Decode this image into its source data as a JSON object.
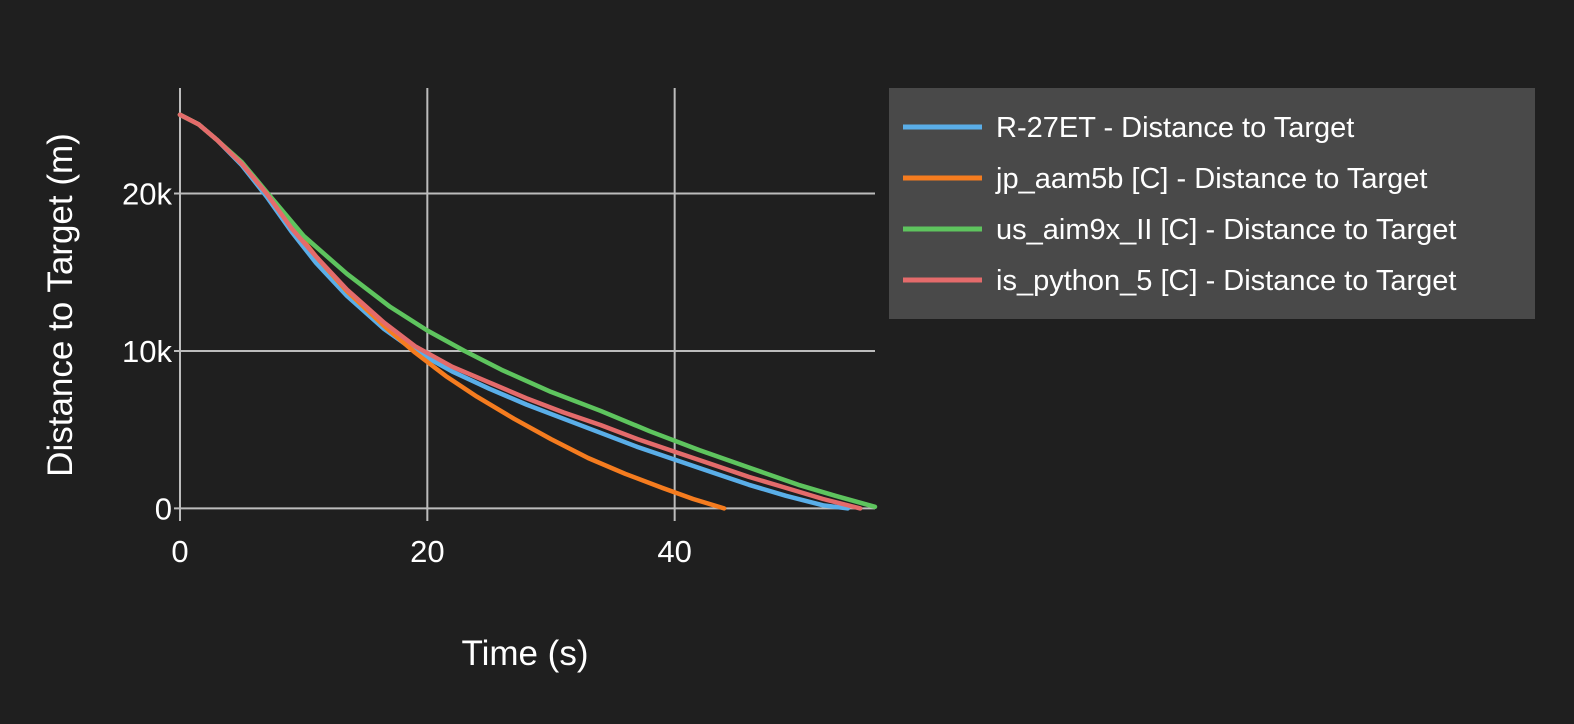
{
  "chart_data": {
    "type": "line",
    "xlabel": "Time (s)",
    "ylabel": "Distance to Target (m)",
    "xlim": [
      0,
      56.2
    ],
    "ylim": [
      -800,
      26700
    ],
    "xticks": [
      {
        "value": 0,
        "label": "0"
      },
      {
        "value": 20,
        "label": "20"
      },
      {
        "value": 40,
        "label": "40"
      }
    ],
    "yticks": [
      {
        "value": 0,
        "label": "0"
      },
      {
        "value": 10000,
        "label": "10k"
      },
      {
        "value": 20000,
        "label": "20k"
      }
    ],
    "grid": true,
    "legend_position": "top-right, outside plot",
    "background": "#1f1f1f",
    "legend_background": "#494949",
    "grid_color": "#bcbcbc",
    "series": [
      {
        "name": "R-27ET - Distance to Target",
        "color": "#5aaee8",
        "x": [
          0,
          1.5,
          3,
          5,
          7,
          9,
          11,
          13.5,
          16.5,
          19,
          22,
          25,
          28,
          31,
          34,
          37,
          40,
          43,
          46,
          49,
          52,
          54
        ],
        "y": [
          25000,
          24400,
          23400,
          21800,
          19800,
          17600,
          15600,
          13500,
          11400,
          10000,
          8700,
          7600,
          6600,
          5700,
          4800,
          3900,
          3100,
          2300,
          1500,
          800,
          200,
          0
        ]
      },
      {
        "name": "jp_aam5b [C] - Distance to Target",
        "color": "#f57c1f",
        "x": [
          0,
          1.5,
          3,
          5,
          7,
          9,
          11,
          13.5,
          16.5,
          19,
          21.5,
          24,
          27,
          30,
          33,
          36,
          39,
          41.5,
          44
        ],
        "y": [
          25000,
          24400,
          23400,
          21900,
          20000,
          18000,
          16000,
          13800,
          11600,
          9900,
          8400,
          7100,
          5700,
          4400,
          3200,
          2200,
          1300,
          600,
          0
        ]
      },
      {
        "name": "us_aim9x_II [C] - Distance to Target",
        "color": "#5ec45e",
        "x": [
          0,
          1.5,
          3,
          5,
          7,
          10,
          13.5,
          17,
          20,
          23,
          26,
          30,
          34,
          38,
          42,
          46,
          50,
          53,
          56.2
        ],
        "y": [
          25000,
          24400,
          23400,
          22000,
          20100,
          17300,
          14900,
          12800,
          11300,
          10000,
          8800,
          7400,
          6200,
          4900,
          3700,
          2600,
          1500,
          800,
          100
        ]
      },
      {
        "name": "is_python_5 [C] - Distance to Target",
        "color": "#e46b6b",
        "x": [
          0,
          1.5,
          3,
          5,
          7,
          9,
          11,
          13.5,
          16.5,
          19,
          22,
          25,
          28,
          31,
          34,
          37,
          40,
          43,
          46,
          49,
          52,
          55
        ],
        "y": [
          25000,
          24400,
          23400,
          21900,
          20000,
          17800,
          16000,
          13900,
          11800,
          10300,
          9000,
          8000,
          7000,
          6100,
          5300,
          4400,
          3600,
          2800,
          2000,
          1300,
          600,
          0
        ]
      }
    ]
  }
}
